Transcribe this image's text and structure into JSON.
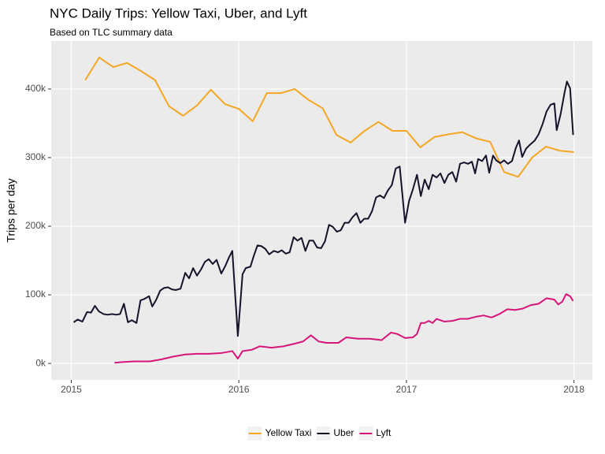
{
  "chart_data": {
    "type": "line",
    "title": "NYC Daily Trips: Yellow Taxi, Uber, and Lyft",
    "subtitle": "Based on TLC summary data",
    "y_label": "Trips per day",
    "xlim": [
      2014.88,
      2018.11
    ],
    "ylim": [
      -24000,
      470000
    ],
    "xticks": [
      2015,
      2016,
      2017,
      2018
    ],
    "yticks": [
      {
        "value": 0,
        "label": "0k"
      },
      {
        "value": 100000,
        "label": "100k"
      },
      {
        "value": 200000,
        "label": "200k"
      },
      {
        "value": 300000,
        "label": "300k"
      },
      {
        "value": 400000,
        "label": "400k"
      }
    ],
    "grid": true,
    "legend": "bottom",
    "series": [
      {
        "name": "Yellow Taxi",
        "color": "#f5a623",
        "x": [
          2015.083,
          2015.167,
          2015.25,
          2015.333,
          2015.417,
          2015.5,
          2015.583,
          2015.667,
          2015.75,
          2015.833,
          2015.917,
          2016,
          2016.083,
          2016.167,
          2016.25,
          2016.333,
          2016.417,
          2016.5,
          2016.583,
          2016.667,
          2016.75,
          2016.833,
          2016.917,
          2017,
          2017.083,
          2017.167,
          2017.25,
          2017.333,
          2017.417,
          2017.5,
          2017.583,
          2017.667,
          2017.75,
          2017.833,
          2017.917,
          2018
        ],
        "values": [
          413000,
          446000,
          432000,
          438000,
          426000,
          413000,
          375000,
          361000,
          376000,
          399000,
          378000,
          371000,
          353000,
          394000,
          394000,
          400000,
          384000,
          372000,
          333000,
          322000,
          339000,
          352000,
          339000,
          339000,
          315000,
          330000,
          334000,
          337000,
          328000,
          323000,
          279000,
          272000,
          300000,
          316000,
          310000,
          308000
        ]
      },
      {
        "name": "Uber",
        "color": "#14132a",
        "x": [
          2015.014,
          2015.038,
          2015.066,
          2015.094,
          2015.117,
          2015.141,
          2015.164,
          2015.192,
          2015.216,
          2015.244,
          2015.267,
          2015.291,
          2015.314,
          2015.338,
          2015.361,
          2015.389,
          2015.413,
          2015.436,
          2015.464,
          2015.483,
          2015.507,
          2015.53,
          2015.553,
          2015.577,
          2015.6,
          2015.624,
          2015.652,
          2015.68,
          2015.703,
          2015.727,
          2015.75,
          2015.774,
          2015.797,
          2015.82,
          2015.844,
          2015.867,
          2015.895,
          2015.919,
          2015.942,
          2015.961,
          2015.994,
          2016.022,
          2016.041,
          2016.069,
          2016.088,
          2016.111,
          2016.134,
          2016.158,
          2016.181,
          2016.209,
          2016.233,
          2016.256,
          2016.28,
          2016.303,
          2016.327,
          2016.35,
          2016.374,
          2016.397,
          2016.42,
          2016.444,
          2016.467,
          2016.491,
          2016.514,
          2016.538,
          2016.561,
          2016.585,
          2016.608,
          2016.631,
          2016.655,
          2016.678,
          2016.702,
          2016.725,
          2016.749,
          2016.772,
          2016.795,
          2016.819,
          2016.842,
          2016.866,
          2016.889,
          2016.913,
          2016.936,
          2016.96,
          2016.992,
          2017.016,
          2017.039,
          2017.063,
          2017.086,
          2017.109,
          2017.133,
          2017.156,
          2017.18,
          2017.203,
          2017.227,
          2017.25,
          2017.274,
          2017.297,
          2017.32,
          2017.344,
          2017.367,
          2017.391,
          2017.41,
          2017.428,
          2017.452,
          2017.475,
          2017.494,
          2017.517,
          2017.536,
          2017.56,
          2017.583,
          2017.606,
          2017.63,
          2017.653,
          2017.672,
          2017.691,
          2017.714,
          2017.738,
          2017.766,
          2017.789,
          2017.813,
          2017.836,
          2017.86,
          2017.883,
          2017.897,
          2017.92,
          2017.944,
          2017.958,
          2017.977,
          2017.995
        ],
        "values": [
          60000,
          64000,
          61000,
          75000,
          74000,
          84000,
          76000,
          72000,
          71000,
          72000,
          71000,
          72000,
          87000,
          60000,
          63000,
          59000,
          92000,
          94000,
          98000,
          83000,
          93000,
          106000,
          110000,
          111000,
          108000,
          107000,
          109000,
          132000,
          124000,
          139000,
          128000,
          137000,
          148000,
          152000,
          145000,
          151000,
          131000,
          142000,
          155000,
          164000,
          40000,
          130000,
          139000,
          141000,
          156000,
          172000,
          171000,
          167000,
          159000,
          164000,
          162000,
          165000,
          160000,
          162000,
          184000,
          179000,
          183000,
          164000,
          179000,
          179000,
          169000,
          168000,
          178000,
          202000,
          199000,
          192000,
          194000,
          205000,
          205000,
          213000,
          219000,
          205000,
          211000,
          211000,
          222000,
          242000,
          245000,
          241000,
          252000,
          260000,
          284000,
          287000,
          205000,
          237000,
          254000,
          275000,
          244000,
          268000,
          254000,
          275000,
          271000,
          277000,
          263000,
          275000,
          279000,
          265000,
          291000,
          293000,
          291000,
          294000,
          277000,
          298000,
          295000,
          303000,
          278000,
          303000,
          296000,
          292000,
          296000,
          291000,
          295000,
          314000,
          325000,
          301000,
          313000,
          319000,
          325000,
          334000,
          349000,
          367000,
          377000,
          379000,
          340000,
          363000,
          395000,
          411000,
          401000,
          333000
        ]
      },
      {
        "name": "Lyft",
        "color": "#d6157a",
        "x": [
          2015.258,
          2015.305,
          2015.375,
          2015.469,
          2015.539,
          2015.609,
          2015.68,
          2015.75,
          2015.82,
          2015.891,
          2015.961,
          2015.994,
          2016.022,
          2016.078,
          2016.125,
          2016.195,
          2016.266,
          2016.336,
          2016.383,
          2016.43,
          2016.477,
          2016.524,
          2016.594,
          2016.641,
          2016.711,
          2016.781,
          2016.852,
          2016.908,
          2016.945,
          2016.992,
          2017.039,
          2017.063,
          2017.086,
          2017.109,
          2017.133,
          2017.156,
          2017.18,
          2017.227,
          2017.274,
          2017.32,
          2017.367,
          2017.414,
          2017.461,
          2017.508,
          2017.555,
          2017.602,
          2017.649,
          2017.695,
          2017.742,
          2017.789,
          2017.836,
          2017.883,
          2017.906,
          2017.93,
          2017.953,
          2017.977,
          2017.995
        ],
        "values": [
          1000,
          2000,
          3000,
          3000,
          6000,
          10000,
          13000,
          14000,
          14000,
          15000,
          18000,
          7000,
          18000,
          20000,
          25000,
          23000,
          25000,
          29000,
          32000,
          41000,
          32000,
          30000,
          30000,
          38000,
          36000,
          36000,
          34000,
          45000,
          43000,
          37000,
          38000,
          43000,
          59000,
          59000,
          62000,
          59000,
          65000,
          61000,
          62000,
          65000,
          65000,
          68000,
          70000,
          67000,
          72000,
          79000,
          78000,
          80000,
          85000,
          87000,
          95000,
          93000,
          86000,
          90000,
          101000,
          98000,
          91000
        ]
      }
    ]
  }
}
